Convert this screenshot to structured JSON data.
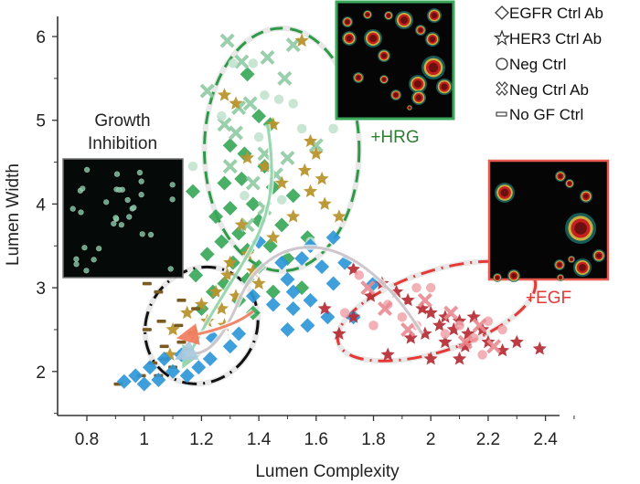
{
  "chart_data": {
    "type": "scatter",
    "title": "",
    "xlabel": "Lumen Complexity",
    "ylabel": "Lumen Width",
    "xlim": [
      0.7,
      2.55
    ],
    "ylim": [
      1.47,
      6.2
    ],
    "xticks": [
      "0.8",
      "1",
      "1.2",
      "1.4",
      "1.6",
      "1.8",
      "2",
      "2.2",
      "2.4"
    ],
    "xtick_values": [
      0.8,
      1.0,
      1.2,
      1.4,
      1.6,
      1.8,
      2.0,
      2.2,
      2.4
    ],
    "yticks": [
      "2",
      "3",
      "4",
      "5",
      "6"
    ],
    "ytick_values": [
      2,
      3,
      4,
      5,
      6
    ],
    "grid": false,
    "legend_position": "top-right",
    "legend": [
      {
        "label": "EGFR Ctrl Ab",
        "marker": "diamond"
      },
      {
        "label": "HER3 Ctrl Ab",
        "marker": "star"
      },
      {
        "label": "Neg Ctrl",
        "marker": "circle"
      },
      {
        "label": "Neg Ctrl Ab",
        "marker": "x"
      },
      {
        "label": "No GF Ctrl",
        "marker": "dash"
      }
    ],
    "colors": {
      "hrg_green": "#3aa85a",
      "hrg_light": "#9ed3b0",
      "olive": "#b8952e",
      "blue": "#2e97d8",
      "red_dark": "#b8323a",
      "red_light": "#f0a3aa",
      "dash_brown": "#7a5a20"
    },
    "annotations": [
      {
        "text": "Growth",
        "color": "#222222"
      },
      {
        "text": "Inhibition",
        "color": "#222222"
      },
      {
        "text": "+HRG",
        "color": "#2e7d32"
      },
      {
        "text": "+EGF",
        "color": "#e53935"
      }
    ],
    "clusters": [
      {
        "name": "+HRG",
        "center": [
          1.48,
          4.65
        ],
        "rx": 0.27,
        "ry": 1.45,
        "color": "#2e9a48",
        "style": "dashed"
      },
      {
        "name": "+EGF",
        "center": [
          2.02,
          2.72
        ],
        "rx": 0.36,
        "ry": 0.48,
        "angle": -18,
        "color": "#e53935",
        "style": "dash-dot"
      },
      {
        "name": "Growth Inhibition",
        "center": [
          1.2,
          2.55
        ],
        "rx": 0.19,
        "ry": 0.72,
        "angle": 35,
        "color": "#111111",
        "style": "dash-dot"
      }
    ],
    "series": [
      {
        "name": "HRG EGFR Ctrl Ab",
        "marker": "diamond",
        "color": "#3aa85a",
        "points": [
          [
            1.36,
            5.55
          ],
          [
            1.4,
            5.05
          ],
          [
            1.44,
            4.95
          ],
          [
            1.3,
            4.7
          ],
          [
            1.35,
            4.6
          ],
          [
            1.42,
            4.45
          ],
          [
            1.28,
            4.25
          ],
          [
            1.34,
            4.3
          ],
          [
            1.45,
            4.2
          ],
          [
            1.38,
            4.0
          ],
          [
            1.3,
            3.95
          ],
          [
            1.25,
            3.85
          ],
          [
            1.4,
            3.8
          ],
          [
            1.48,
            3.75
          ],
          [
            1.33,
            3.65
          ],
          [
            1.27,
            3.55
          ],
          [
            1.36,
            3.45
          ],
          [
            1.44,
            3.5
          ],
          [
            1.22,
            3.4
          ],
          [
            1.31,
            3.3
          ],
          [
            1.4,
            3.25
          ],
          [
            1.5,
            3.35
          ],
          [
            1.18,
            3.15
          ],
          [
            1.28,
            3.05
          ],
          [
            1.36,
            3.1
          ],
          [
            1.24,
            2.95
          ],
          [
            1.33,
            2.85
          ],
          [
            1.45,
            2.95
          ],
          [
            1.55,
            3.0
          ],
          [
            1.17,
            4.15
          ],
          [
            1.52,
            4.1
          ],
          [
            1.57,
            3.6
          ],
          [
            1.2,
            2.75
          ],
          [
            1.38,
            2.7
          ]
        ]
      },
      {
        "name": "HRG Neg Ctrl Ab",
        "marker": "x",
        "color": "#8fcaa3",
        "points": [
          [
            1.29,
            5.95
          ],
          [
            1.52,
            5.9
          ],
          [
            1.34,
            5.7
          ],
          [
            1.43,
            5.75
          ],
          [
            1.22,
            5.35
          ],
          [
            1.49,
            5.5
          ],
          [
            1.33,
            5.15
          ],
          [
            1.37,
            5.2
          ],
          [
            1.28,
            4.95
          ],
          [
            1.32,
            4.85
          ],
          [
            1.42,
            4.6
          ],
          [
            1.5,
            4.55
          ],
          [
            1.3,
            4.45
          ],
          [
            1.38,
            4.25
          ],
          [
            1.46,
            4.35
          ],
          [
            1.6,
            4.7
          ],
          [
            1.42,
            3.95
          ],
          [
            1.36,
            3.75
          ]
        ]
      },
      {
        "name": "HRG Neg Ctrl",
        "marker": "circle",
        "color": "#bfe2cc",
        "points": [
          [
            1.31,
            5.68
          ],
          [
            1.38,
            5.68
          ],
          [
            1.42,
            5.3
          ],
          [
            1.47,
            5.25
          ],
          [
            1.52,
            5.2
          ],
          [
            1.27,
            5.05
          ],
          [
            1.4,
            4.8
          ],
          [
            1.55,
            4.9
          ],
          [
            1.66,
            4.9
          ],
          [
            1.17,
            4.45
          ],
          [
            1.48,
            4.05
          ],
          [
            1.35,
            4.1
          ],
          [
            1.58,
            3.55
          ]
        ]
      },
      {
        "name": "Olive HER3 Ctrl Ab",
        "marker": "star",
        "color": "#b8952e",
        "points": [
          [
            1.55,
            5.95
          ],
          [
            1.28,
            5.3
          ],
          [
            1.32,
            5.2
          ],
          [
            1.45,
            4.95
          ],
          [
            1.58,
            4.75
          ],
          [
            1.6,
            4.6
          ],
          [
            1.36,
            4.55
          ],
          [
            1.42,
            4.45
          ],
          [
            1.56,
            4.4
          ],
          [
            1.62,
            4.3
          ],
          [
            1.48,
            4.25
          ],
          [
            1.58,
            4.15
          ],
          [
            1.63,
            4.0
          ],
          [
            1.52,
            3.85
          ],
          [
            1.68,
            3.85
          ],
          [
            1.34,
            3.75
          ],
          [
            1.45,
            3.6
          ],
          [
            1.36,
            3.4
          ],
          [
            1.3,
            3.3
          ],
          [
            1.38,
            3.2
          ],
          [
            1.29,
            3.15
          ],
          [
            1.25,
            2.95
          ],
          [
            1.32,
            2.9
          ],
          [
            1.2,
            2.8
          ],
          [
            1.27,
            2.75
          ],
          [
            1.15,
            2.7
          ],
          [
            1.22,
            2.6
          ],
          [
            1.1,
            2.5
          ],
          [
            1.18,
            2.45
          ],
          [
            1.28,
            2.55
          ],
          [
            1.09,
            2.2
          ],
          [
            1.4,
            3.05
          ]
        ]
      },
      {
        "name": "No GF Ctrl",
        "marker": "dash",
        "color": "#7a5a20",
        "points": [
          [
            1.01,
            3.05
          ],
          [
            1.05,
            2.95
          ],
          [
            1.13,
            2.85
          ],
          [
            1.18,
            2.75
          ],
          [
            1.06,
            2.6
          ],
          [
            1.12,
            2.55
          ],
          [
            1.01,
            2.5
          ],
          [
            1.17,
            2.45
          ],
          [
            1.07,
            2.3
          ],
          [
            1.13,
            2.35
          ],
          [
            1.03,
            2.1
          ],
          [
            1.1,
            2.05
          ],
          [
            1.05,
            1.95
          ],
          [
            0.99,
            1.95
          ],
          [
            0.91,
            1.85
          ],
          [
            1.07,
            2.15
          ]
        ]
      },
      {
        "name": "Blue EGFR Ctrl Ab",
        "marker": "diamond",
        "color": "#2e97d8",
        "points": [
          [
            1.13,
            2.2
          ],
          [
            1.07,
            2.15
          ],
          [
            1.02,
            2.05
          ],
          [
            1.1,
            2.0
          ],
          [
            1.15,
            1.95
          ],
          [
            1.05,
            1.9
          ],
          [
            0.97,
            1.95
          ],
          [
            1.19,
            2.05
          ],
          [
            1.23,
            2.15
          ],
          [
            1.0,
            1.85
          ],
          [
            0.93,
            1.88
          ],
          [
            1.24,
            2.4
          ],
          [
            1.3,
            2.3
          ],
          [
            1.33,
            2.45
          ],
          [
            1.58,
            3.5
          ],
          [
            1.55,
            3.35
          ],
          [
            1.62,
            3.25
          ],
          [
            1.48,
            3.3
          ],
          [
            1.7,
            3.3
          ],
          [
            1.5,
            3.1
          ],
          [
            1.66,
            3.05
          ],
          [
            1.52,
            2.95
          ],
          [
            1.45,
            2.8
          ],
          [
            1.52,
            2.75
          ],
          [
            1.58,
            2.85
          ],
          [
            1.64,
            2.65
          ],
          [
            1.57,
            2.55
          ],
          [
            1.5,
            2.5
          ],
          [
            1.73,
            2.65
          ],
          [
            1.38,
            2.9
          ],
          [
            1.8,
            3.05
          ],
          [
            1.66,
            3.6
          ],
          [
            1.4,
            3.55
          ]
        ]
      },
      {
        "name": "EGF HER3 Ctrl Ab",
        "marker": "star",
        "color": "#b8323a",
        "points": [
          [
            1.73,
            3.22
          ],
          [
            1.83,
            3.05
          ],
          [
            1.88,
            2.95
          ],
          [
            1.79,
            2.9
          ],
          [
            1.92,
            2.85
          ],
          [
            1.97,
            2.75
          ],
          [
            2.0,
            2.7
          ],
          [
            2.05,
            2.65
          ],
          [
            2.1,
            2.6
          ],
          [
            2.03,
            2.55
          ],
          [
            2.08,
            2.5
          ],
          [
            2.13,
            2.45
          ],
          [
            2.18,
            2.5
          ],
          [
            2.15,
            2.65
          ],
          [
            1.98,
            2.45
          ],
          [
            2.05,
            2.35
          ],
          [
            2.12,
            2.3
          ],
          [
            2.2,
            2.35
          ],
          [
            2.25,
            2.25
          ],
          [
            1.93,
            2.4
          ],
          [
            2.0,
            2.15
          ],
          [
            2.1,
            2.15
          ],
          [
            2.3,
            2.35
          ],
          [
            1.85,
            2.2
          ],
          [
            1.73,
            2.65
          ],
          [
            1.63,
            2.75
          ],
          [
            2.38,
            2.27
          ],
          [
            1.68,
            2.45
          ]
        ]
      },
      {
        "name": "EGF Neg Ctrl",
        "marker": "circle",
        "color": "#f0a3aa",
        "points": [
          [
            1.75,
            3.15
          ],
          [
            1.95,
            3.0
          ],
          [
            2.0,
            3.0
          ],
          [
            1.85,
            2.8
          ],
          [
            1.9,
            2.65
          ],
          [
            1.95,
            2.55
          ],
          [
            2.1,
            2.55
          ],
          [
            2.15,
            2.4
          ],
          [
            2.2,
            2.6
          ],
          [
            1.8,
            2.55
          ],
          [
            1.7,
            2.7
          ],
          [
            2.25,
            2.5
          ],
          [
            2.18,
            2.2
          ],
          [
            2.05,
            2.45
          ]
        ]
      },
      {
        "name": "EGF Neg Ctrl Ab",
        "marker": "x",
        "color": "#e98991",
        "points": [
          [
            1.78,
            3.0
          ],
          [
            1.84,
            2.75
          ],
          [
            1.98,
            2.85
          ],
          [
            2.07,
            2.7
          ],
          [
            2.17,
            2.55
          ],
          [
            2.22,
            2.3
          ],
          [
            1.92,
            2.5
          ],
          [
            2.12,
            2.35
          ]
        ]
      }
    ],
    "arrows": [
      {
        "from": [
          1.43,
          4.95
        ],
        "to": [
          1.15,
          2.15
        ],
        "color": "#8fd3a8"
      },
      {
        "from": [
          1.97,
          2.45
        ],
        "to": [
          1.14,
          2.2
        ],
        "color": "#c9c1c8"
      },
      {
        "from": [
          1.38,
          2.72
        ],
        "to": [
          1.15,
          2.42
        ],
        "color": "#f07a5a"
      }
    ]
  }
}
